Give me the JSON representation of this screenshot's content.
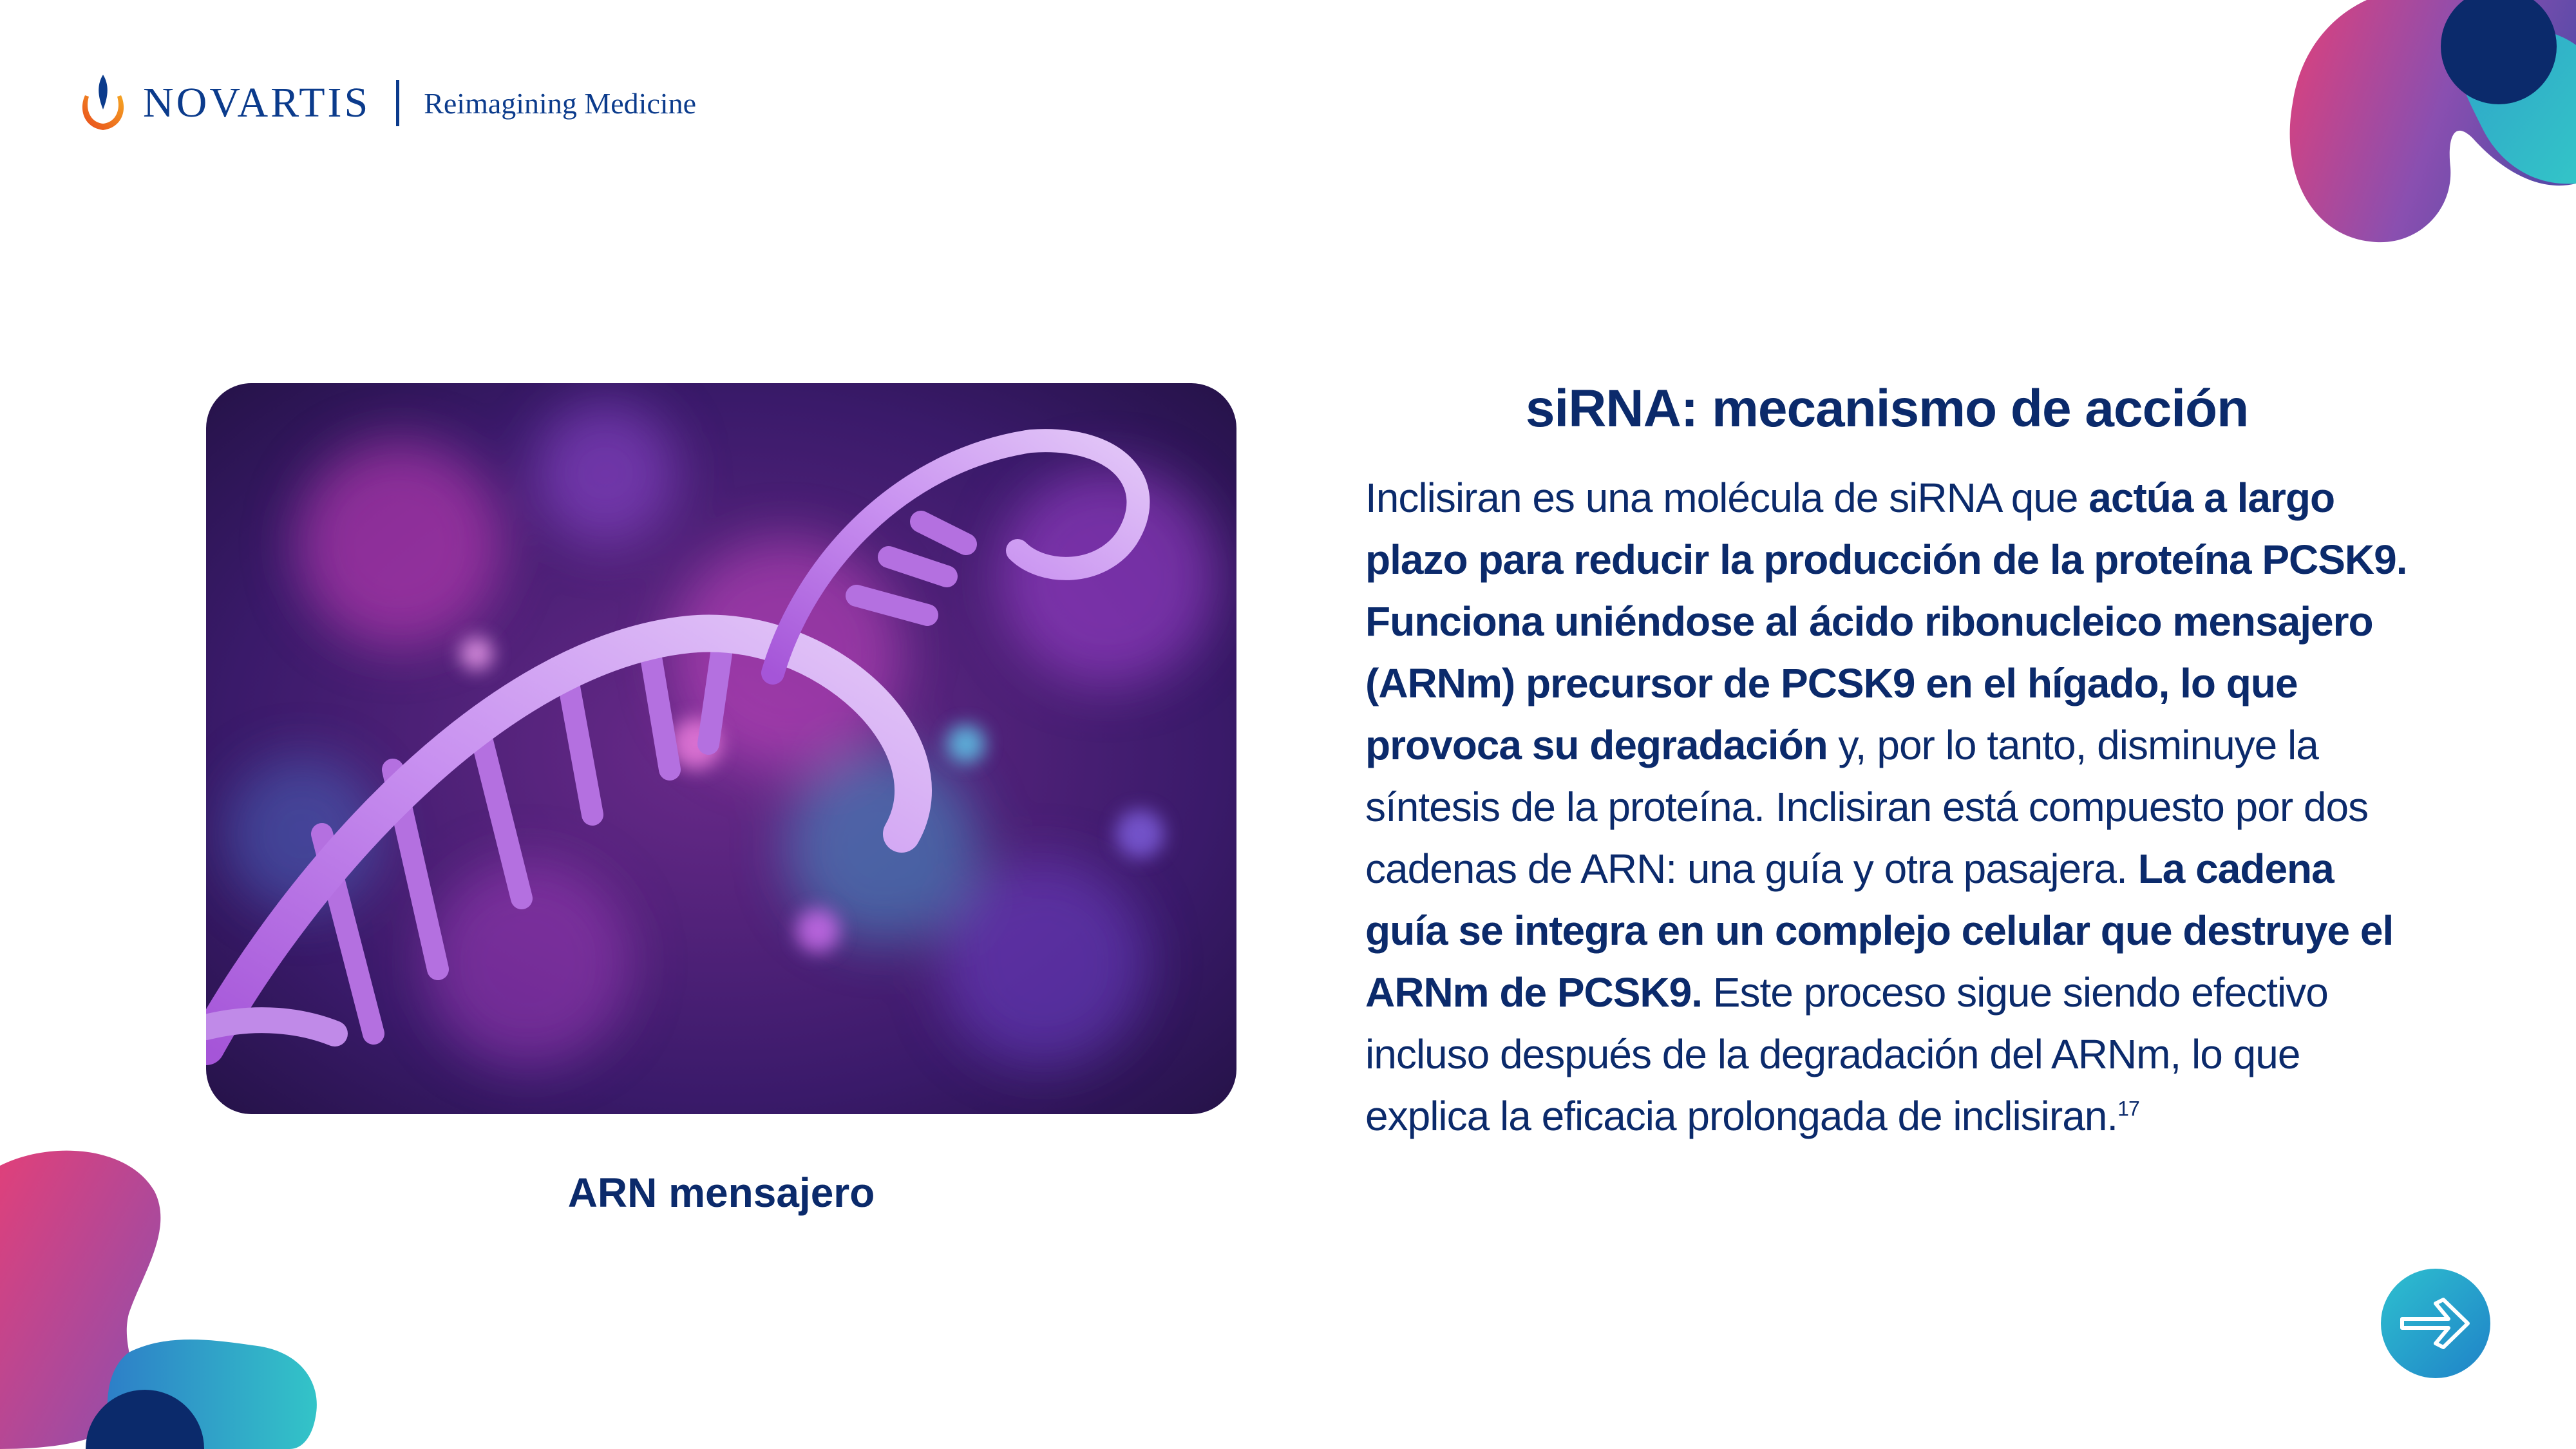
{
  "header": {
    "brand": "NOVARTIS",
    "tagline": "Reimagining Medicine",
    "logo_icon": "novartis-flame-icon"
  },
  "image": {
    "caption": "ARN mensajero",
    "subject": "purple-rna-helix-illustration"
  },
  "content": {
    "title": "siRNA: mecanismo de acción",
    "paragraph": [
      {
        "text": "Inclisiran es una molécula de siRNA que ",
        "bold": false
      },
      {
        "text": "actúa a largo plazo para reducir la producción de la proteína PCSK9. Funciona uniéndose al ácido ribonucleico mensajero (ARNm) precursor de PCSK9 en el hígado, lo que provoca su degradación",
        "bold": true
      },
      {
        "text": " y, por lo tanto, disminuye la síntesis de la proteína. Inclisiran está compuesto por dos cadenas de ARN: una guía y otra pasajera. ",
        "bold": false
      },
      {
        "text": "La cadena guía se integra en un complejo celular que destruye el ARNm de PCSK9.",
        "bold": true
      },
      {
        "text": " Este proceso sigue siendo efectivo incluso después de la degradación del ARNm, lo que explica la eficacia prolongada de inclisiran.",
        "bold": false
      }
    ],
    "reference": "17"
  },
  "navigation": {
    "next_icon": "arrow-right-icon"
  },
  "colors": {
    "navy": "#0b2a6b",
    "accent_pink": "#e0407a",
    "accent_purple": "#8a4fb0",
    "accent_teal": "#2ec0cf"
  }
}
